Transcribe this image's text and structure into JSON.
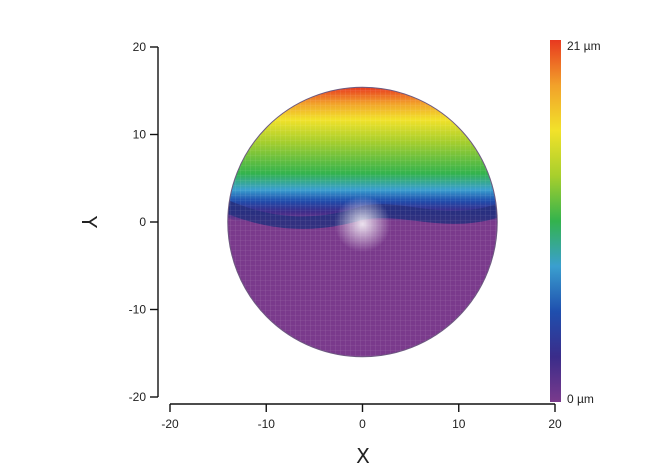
{
  "chart_data": {
    "type": "heatmap",
    "title": "",
    "xlabel": "X",
    "ylabel": "Y",
    "xlim": [
      -20,
      20
    ],
    "ylim": [
      -20,
      20
    ],
    "x_ticks": [
      "-20",
      "-10",
      "0",
      "10",
      "20"
    ],
    "y_ticks": [
      "20",
      "10",
      "0",
      "-10",
      "-20"
    ],
    "surface": {
      "shape": "circular corneal topography map",
      "center": [
        0,
        0
      ],
      "radius": 14,
      "min_value": 0,
      "max_value": 21,
      "unit": "µm",
      "peak_region": "top (Y ≈ 12 to 16)",
      "flat_region": "bottom half (Y < 0)"
    },
    "colorbar": {
      "max_label": "21 µm",
      "min_label": "0 µm",
      "colors": [
        "#7a3a8c",
        "#3a2c8a",
        "#1f4fae",
        "#3a9fcf",
        "#33b34d",
        "#a8cf2c",
        "#f2e22a",
        "#f2a12a",
        "#e8391f"
      ]
    },
    "grid": false
  }
}
